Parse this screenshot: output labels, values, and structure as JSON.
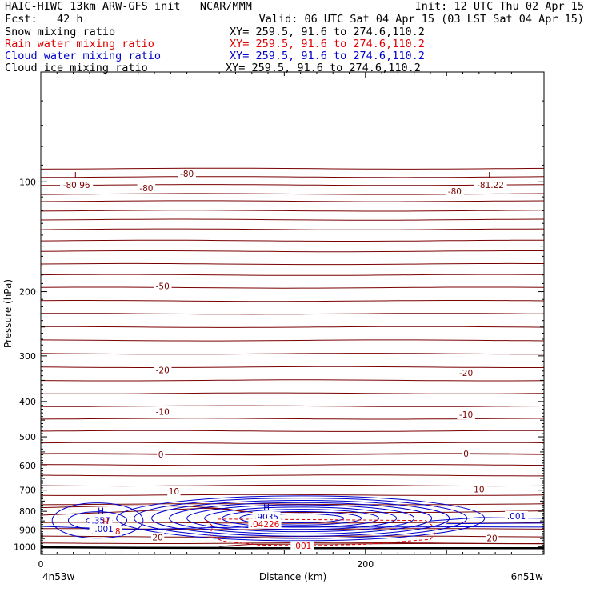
{
  "header": {
    "title_left": "HAIC-HIWC 13km ARW-GFS init   NCAR/MMM",
    "init": "Init: 12 UTC Thu 02 Apr 15",
    "fcst": "Fcst:   42 h",
    "valid": "Valid: 06 UTC Sat 04 Apr 15 (03 LST Sat 04 Apr 15)",
    "fields": [
      {
        "name": "Snow mixing ratio",
        "xy": "XY= 259.5, 91.6 to 274.6,110.2",
        "color": "#000000"
      },
      {
        "name": "Rain water mixing ratio",
        "xy": "XY= 259.5, 91.6 to 274.6,110.2",
        "color": "#e00000"
      },
      {
        "name": "Cloud water mixing ratio",
        "xy": "XY= 259.5, 91.6 to 274.6,110.2",
        "color": "#0000cc"
      },
      {
        "name": "Cloud ice mixing ratio",
        "xy": "XY= 259.5, 91.6 to 274.6,110.2",
        "color": "#000000"
      }
    ]
  },
  "chart_data": {
    "type": "contour",
    "xlabel": "Distance (km)",
    "ylabel": "Pressure (hPa)",
    "xlim": [
      0,
      310
    ],
    "ylim": [
      1050,
      50
    ],
    "y_log_scale": true,
    "x_ticks": [
      0,
      200
    ],
    "y_ticks": [
      100,
      200,
      300,
      400,
      500,
      600,
      700,
      800,
      900,
      1000
    ],
    "x_end_labels": {
      "left": "4n53w",
      "right": "6n51w"
    },
    "colors": {
      "temperature": "#7a0000",
      "rain": "#e00000",
      "cloud_water": "#0000cc",
      "snow": "#000000"
    },
    "temperature_contours_labels": [
      {
        "text": "-80",
        "x": 90,
        "p": 95
      },
      {
        "text": "-80",
        "x": 65,
        "p": 104
      },
      {
        "text": "-80",
        "x": 255,
        "p": 106
      },
      {
        "text": "-50",
        "x": 75,
        "p": 193
      },
      {
        "text": "-20",
        "x": 75,
        "p": 328
      },
      {
        "text": "-20",
        "x": 262,
        "p": 334
      },
      {
        "text": "-10",
        "x": 75,
        "p": 426
      },
      {
        "text": "-10",
        "x": 262,
        "p": 434
      },
      {
        "text": "0",
        "x": 74,
        "p": 559
      },
      {
        "text": "0",
        "x": 262,
        "p": 556
      },
      {
        "text": "10",
        "x": 82,
        "p": 705
      },
      {
        "text": "10",
        "x": 270,
        "p": 695
      },
      {
        "text": "20",
        "x": 72,
        "p": 943
      },
      {
        "text": "20",
        "x": 278,
        "p": 947
      }
    ],
    "extrema": [
      {
        "kind": "L",
        "value": "-80.96",
        "x": 22,
        "p": 102,
        "field": "temperature"
      },
      {
        "kind": "L",
        "value": "-81.22",
        "x": 277,
        "p": 102,
        "field": "temperature"
      },
      {
        "kind": "H",
        "value": ".357",
        "x": 37,
        "p": 847,
        "field": "cloud_water"
      },
      {
        "kind": "H",
        "value": ".9035",
        "x": 139,
        "p": 828,
        "field": "cloud_water"
      },
      {
        "kind": "H",
        "value": ".00058",
        "x": 40,
        "p": 906,
        "field": "rain"
      },
      {
        "kind": "",
        "value": ".04226",
        "x": 138,
        "p": 866,
        "field": "rain"
      }
    ],
    "other_labels": [
      {
        "text": ".001",
        "x": 39,
        "p": 893,
        "field": "cloud_water"
      },
      {
        "text": ".001",
        "x": 293,
        "p": 824,
        "field": "cloud_water"
      },
      {
        "text": ".001",
        "x": 161,
        "p": 994,
        "field": "rain"
      }
    ]
  }
}
